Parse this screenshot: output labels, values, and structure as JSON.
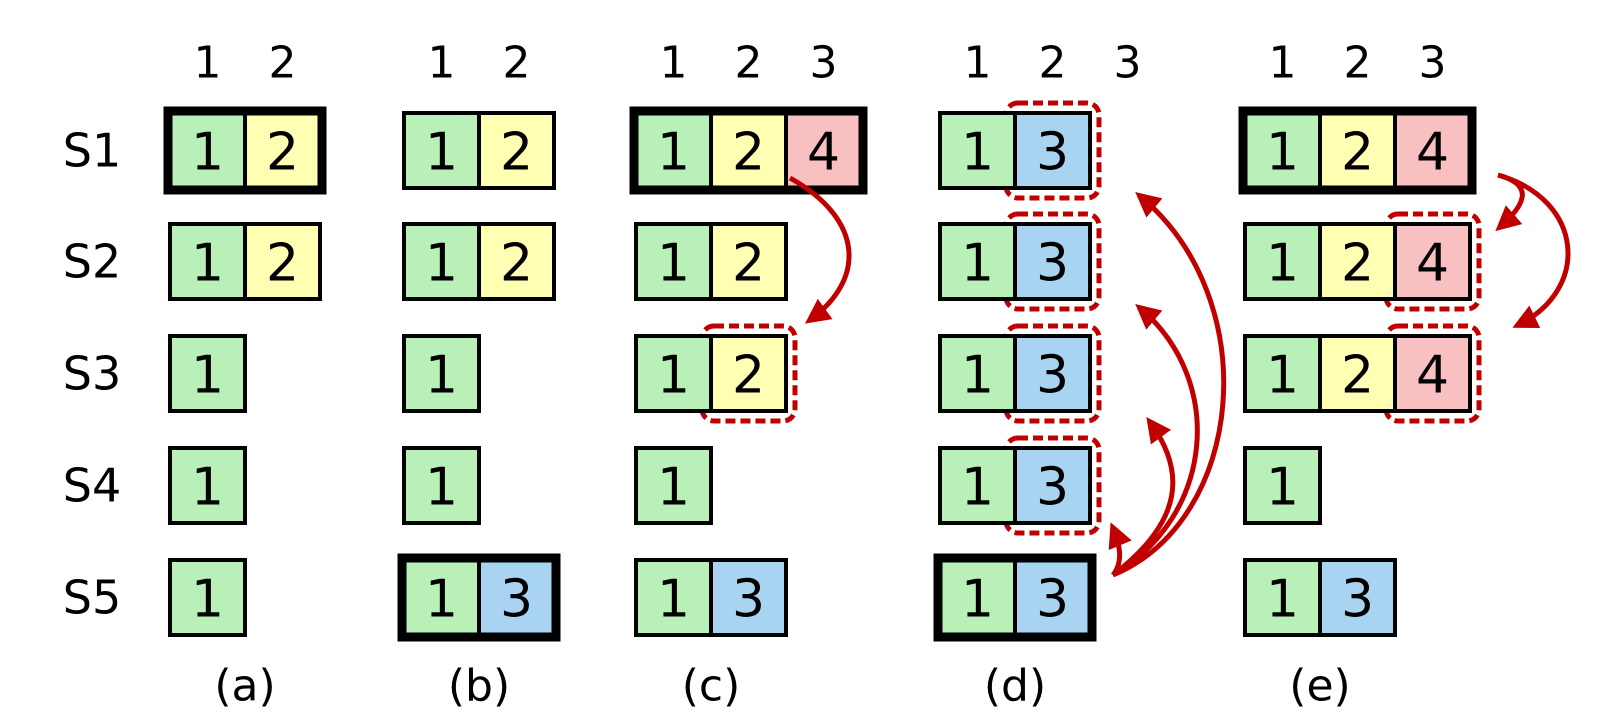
{
  "colors": {
    "term1": "#b8f0b8",
    "term2": "#ffffb4",
    "term3": "#a8d4f2",
    "term4": "#f8c0c0",
    "border": "#000000",
    "highlight": "#c00000",
    "background": "#ffffff"
  },
  "server_labels": [
    "S1",
    "S2",
    "S3",
    "S4",
    "S5"
  ],
  "panels": [
    {
      "caption": "(a)",
      "indices": [
        "1",
        "2"
      ],
      "leader": "S1",
      "logs": [
        [
          "1",
          "2"
        ],
        [
          "1",
          "2"
        ],
        [
          "1"
        ],
        [
          "1"
        ],
        [
          "1"
        ]
      ],
      "highlighted": []
    },
    {
      "caption": "(b)",
      "indices": [
        "1",
        "2"
      ],
      "leader": "S5",
      "logs": [
        [
          "1",
          "2"
        ],
        [
          "1",
          "2"
        ],
        [
          "1"
        ],
        [
          "1"
        ],
        [
          "1",
          "3"
        ]
      ],
      "highlighted": []
    },
    {
      "caption": "(c)",
      "indices": [
        "1",
        "2",
        "3"
      ],
      "leader": "S1",
      "logs": [
        [
          "1",
          "2",
          "4"
        ],
        [
          "1",
          "2"
        ],
        [
          "1",
          "2"
        ],
        [
          "1"
        ],
        [
          "1",
          "3"
        ]
      ],
      "highlighted": [
        {
          "server": "S3",
          "index": 2
        }
      ]
    },
    {
      "caption": "(d)",
      "indices": [
        "1",
        "2",
        "3"
      ],
      "leader": "S5",
      "logs": [
        [
          "1",
          "3"
        ],
        [
          "1",
          "3"
        ],
        [
          "1",
          "3"
        ],
        [
          "1",
          "3"
        ],
        [
          "1",
          "3"
        ]
      ],
      "highlighted": [
        {
          "server": "S1",
          "index": 2
        },
        {
          "server": "S2",
          "index": 2
        },
        {
          "server": "S3",
          "index": 2
        },
        {
          "server": "S4",
          "index": 2
        }
      ]
    },
    {
      "caption": "(e)",
      "indices": [
        "1",
        "2",
        "3"
      ],
      "leader": "S1",
      "logs": [
        [
          "1",
          "2",
          "4"
        ],
        [
          "1",
          "2",
          "4"
        ],
        [
          "1",
          "2",
          "4"
        ],
        [
          "1"
        ],
        [
          "1",
          "3"
        ]
      ],
      "highlighted": [
        {
          "server": "S2",
          "index": 3
        },
        {
          "server": "S3",
          "index": 3
        }
      ]
    }
  ]
}
